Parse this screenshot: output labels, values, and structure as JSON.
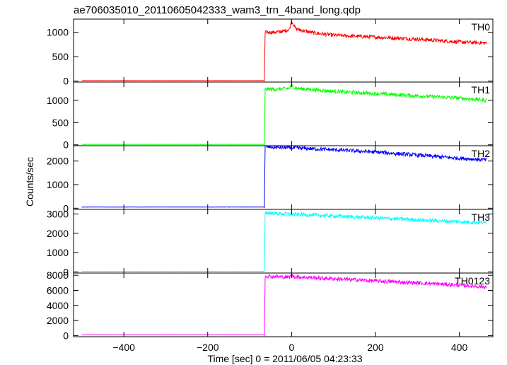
{
  "chart_data": {
    "type": "line",
    "title": "ae706035010_20110605042333_wam3_trn_4band_long.qdp",
    "xlabel": "Time [sec] 0 = 2011/06/05 04:23:33",
    "ylabel": "Counts/sec",
    "xlim": [
      -520,
      480
    ],
    "xticks": [
      -400,
      -200,
      0,
      200,
      400
    ],
    "xtick_labels": [
      "−400",
      "−200",
      "0",
      "200",
      "400"
    ],
    "grid": false,
    "panels": [
      {
        "name": "TH0",
        "color": "#ff0000",
        "ylim": [
          -20,
          1270
        ],
        "yticks": [
          0,
          500,
          1000
        ],
        "ytick_labels": [
          "0",
          "500",
          "1000"
        ],
        "baseline": 10,
        "onset": -65,
        "values": [
          [
            -65,
            10
          ],
          [
            -63,
            1000
          ],
          [
            -40,
            1000
          ],
          [
            -20,
            1020
          ],
          [
            -5,
            1060
          ],
          [
            0,
            1230
          ],
          [
            10,
            1070
          ],
          [
            50,
            990
          ],
          [
            100,
            940
          ],
          [
            200,
            900
          ],
          [
            300,
            860
          ],
          [
            400,
            800
          ],
          [
            465,
            780
          ]
        ]
      },
      {
        "name": "TH1",
        "color": "#00ff00",
        "ylim": [
          -20,
          1410
        ],
        "yticks": [
          0,
          500,
          1000
        ],
        "ytick_labels": [
          "0",
          "500",
          "1000"
        ],
        "baseline": 10,
        "onset": -65,
        "values": [
          [
            -65,
            10
          ],
          [
            -63,
            1250
          ],
          [
            -30,
            1250
          ],
          [
            -5,
            1270
          ],
          [
            0,
            1340
          ],
          [
            10,
            1270
          ],
          [
            50,
            1240
          ],
          [
            100,
            1200
          ],
          [
            200,
            1150
          ],
          [
            300,
            1100
          ],
          [
            400,
            1050
          ],
          [
            465,
            1000
          ]
        ]
      },
      {
        "name": "TH2",
        "color": "#0000ff",
        "ylim": [
          -50,
          2650
        ],
        "yticks": [
          0,
          1000,
          2000
        ],
        "ytick_labels": [
          "0",
          "1000",
          "2000"
        ],
        "baseline": 50,
        "onset": -65,
        "values": [
          [
            -65,
            50
          ],
          [
            -63,
            2620
          ],
          [
            -40,
            2580
          ],
          [
            0,
            2560
          ],
          [
            100,
            2480
          ],
          [
            200,
            2380
          ],
          [
            300,
            2250
          ],
          [
            400,
            2120
          ],
          [
            465,
            2050
          ]
        ]
      },
      {
        "name": "TH3",
        "color": "#00ffff",
        "ylim": [
          -60,
          3240
        ],
        "yticks": [
          0,
          1000,
          2000,
          3000
        ],
        "ytick_labels": [
          "0",
          "1000",
          "2000",
          "3000"
        ],
        "baseline": 30,
        "onset": -65,
        "values": [
          [
            -65,
            30
          ],
          [
            -63,
            3080
          ],
          [
            -40,
            3020
          ],
          [
            0,
            2990
          ],
          [
            100,
            2900
          ],
          [
            200,
            2800
          ],
          [
            300,
            2700
          ],
          [
            400,
            2600
          ],
          [
            465,
            2550
          ]
        ]
      },
      {
        "name": "TH0123",
        "color": "#ff00ff",
        "ylim": [
          -150,
          8300
        ],
        "yticks": [
          0,
          2000,
          4000,
          6000,
          8000
        ],
        "ytick_labels": [
          "0",
          "2000",
          "4000",
          "6000",
          "8000"
        ],
        "baseline": 100,
        "onset": -65,
        "values": [
          [
            -65,
            100
          ],
          [
            -63,
            7900
          ],
          [
            -30,
            7800
          ],
          [
            -5,
            7750
          ],
          [
            0,
            8000
          ],
          [
            10,
            7800
          ],
          [
            100,
            7550
          ],
          [
            200,
            7250
          ],
          [
            300,
            7000
          ],
          [
            400,
            6700
          ],
          [
            465,
            6450
          ]
        ]
      }
    ]
  }
}
